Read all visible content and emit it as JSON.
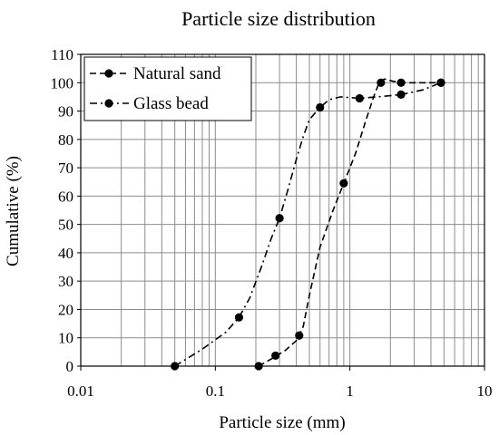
{
  "chart_data": {
    "type": "scatter",
    "title": "Particle size distribution",
    "xlabel": "Particle size (mm)",
    "ylabel": "Cumulative (%)",
    "xscale": "log",
    "xlim": [
      0.01,
      10
    ],
    "ylim": [
      0,
      110
    ],
    "xticks": [
      "0.01",
      "0.1",
      "1",
      "10"
    ],
    "yticks": [
      "0",
      "10",
      "20",
      "30",
      "40",
      "50",
      "60",
      "70",
      "80",
      "90",
      "100",
      "110"
    ],
    "grid": "vertical log minors and horizontal majors on",
    "legend_placement": "top-left",
    "series": [
      {
        "name": "Natural sand",
        "line_style": "dash",
        "marker": "circle",
        "points": [
          [
            0.21,
            0
          ],
          [
            0.28,
            3.7
          ],
          [
            0.42,
            10.8
          ],
          [
            0.9,
            64.5
          ],
          [
            1.7,
            100
          ],
          [
            2.4,
            100
          ],
          [
            4.75,
            100
          ]
        ],
        "curve": [
          [
            0.21,
            0
          ],
          [
            0.26,
            2.5
          ],
          [
            0.33,
            5.5
          ],
          [
            0.4,
            9
          ],
          [
            0.45,
            14
          ],
          [
            0.5,
            25
          ],
          [
            0.6,
            42
          ],
          [
            0.75,
            55
          ],
          [
            0.9,
            64.5
          ],
          [
            1.1,
            75
          ],
          [
            1.3,
            86
          ],
          [
            1.5,
            95
          ],
          [
            1.65,
            100
          ],
          [
            1.8,
            101.3
          ],
          [
            2.1,
            100.5
          ],
          [
            2.6,
            100
          ],
          [
            3.5,
            100
          ],
          [
            4.75,
            100
          ]
        ]
      },
      {
        "name": "Glass bead",
        "line_style": "dash-dot",
        "marker": "circle",
        "points": [
          [
            0.05,
            0
          ],
          [
            0.15,
            17.2
          ],
          [
            0.3,
            52.2
          ],
          [
            0.6,
            91.3
          ],
          [
            1.18,
            94.5
          ],
          [
            2.4,
            95.8
          ],
          [
            4.75,
            100
          ]
        ],
        "curve": [
          [
            0.05,
            0
          ],
          [
            0.08,
            6
          ],
          [
            0.12,
            12
          ],
          [
            0.15,
            17.2
          ],
          [
            0.18,
            24
          ],
          [
            0.22,
            35
          ],
          [
            0.26,
            45
          ],
          [
            0.3,
            52.2
          ],
          [
            0.35,
            63
          ],
          [
            0.4,
            73
          ],
          [
            0.45,
            81
          ],
          [
            0.5,
            87
          ],
          [
            0.6,
            91.3
          ],
          [
            0.7,
            94
          ],
          [
            0.85,
            95
          ],
          [
            1.18,
            94.5
          ],
          [
            1.6,
            95
          ],
          [
            2.4,
            95.8
          ],
          [
            3.5,
            97.5
          ],
          [
            4.75,
            100
          ]
        ]
      }
    ]
  }
}
